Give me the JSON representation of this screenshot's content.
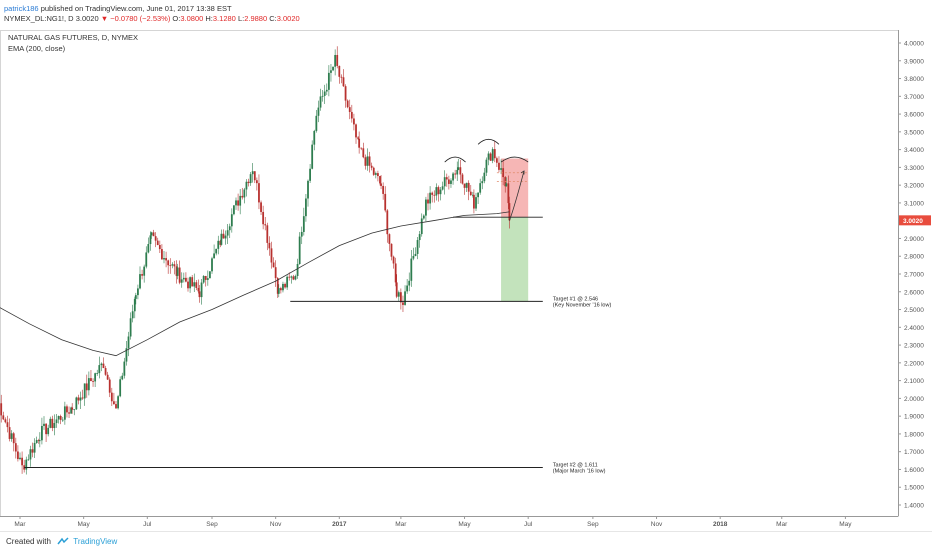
{
  "header": {
    "author": "patrick186",
    "published_text": "published on TradingView.com, June 01, 2017 13:38 EST",
    "symbol_line": "NYMEX_DL:NG1!, D",
    "last_price": "3.0020",
    "change_arrow": "▼",
    "change": "−0.0780 (−2.53%)",
    "open_label": "O:",
    "open": "3.0800",
    "high_label": "H:",
    "high": "3.1280",
    "low_label": "L:",
    "low": "2.9880",
    "close_label": "C:",
    "close": "3.0020"
  },
  "footer": {
    "created_with": "Created with",
    "brand": "TradingView"
  },
  "colors": {
    "up": "#2e7d4f",
    "down": "#b8312f",
    "ema": "#333333",
    "loss_zone": "#f4a9a8",
    "profit_zone": "#b9deb0",
    "price_tag": "#e84c3d"
  },
  "chart_data": {
    "type": "candlestick",
    "title": "NATURAL GAS FUTURES, D, NYMEX",
    "indicator_label": "EMA (200, close)",
    "ylim": [
      1.35,
      4.07
    ],
    "y_ticks": [
      "4.0000",
      "3.9000",
      "3.8000",
      "3.7000",
      "3.6000",
      "3.5000",
      "3.4000",
      "3.3000",
      "3.2000",
      "3.1000",
      "3.0000",
      "2.9000",
      "2.8000",
      "2.7000",
      "2.6000",
      "2.5000",
      "2.4000",
      "2.3000",
      "2.2000",
      "2.1000",
      "2.0000",
      "1.9000",
      "1.8000",
      "1.7000",
      "1.6000",
      "1.5000",
      "1.4000"
    ],
    "x_ticks": [
      "Mar",
      "May",
      "Jul",
      "Sep",
      "Nov",
      "2017",
      "Mar",
      "May",
      "Jul",
      "Sep",
      "Nov",
      "2018",
      "Mar",
      "May"
    ],
    "last_price_label": "3.0020",
    "last_price": 3.002,
    "keypoints": [
      {
        "date": "2016-02-08",
        "price": 2.0
      },
      {
        "date": "2016-03-03",
        "price": 1.611
      },
      {
        "date": "2016-03-20",
        "price": 1.8
      },
      {
        "date": "2016-04-20",
        "price": 1.95
      },
      {
        "date": "2016-05-20",
        "price": 2.2
      },
      {
        "date": "2016-06-01",
        "price": 1.93
      },
      {
        "date": "2016-06-20",
        "price": 2.6
      },
      {
        "date": "2016-07-05",
        "price": 2.9
      },
      {
        "date": "2016-07-30",
        "price": 2.7
      },
      {
        "date": "2016-08-20",
        "price": 2.6
      },
      {
        "date": "2016-09-10",
        "price": 2.9
      },
      {
        "date": "2016-10-10",
        "price": 3.3
      },
      {
        "date": "2016-11-04",
        "price": 2.6
      },
      {
        "date": "2016-11-20",
        "price": 2.7
      },
      {
        "date": "2016-12-10",
        "price": 3.6
      },
      {
        "date": "2016-12-28",
        "price": 3.9
      },
      {
        "date": "2017-01-20",
        "price": 3.4
      },
      {
        "date": "2017-02-10",
        "price": 3.2
      },
      {
        "date": "2017-02-25",
        "price": 2.6
      },
      {
        "date": "2017-03-03",
        "price": 2.55
      },
      {
        "date": "2017-03-25",
        "price": 3.1
      },
      {
        "date": "2017-04-10",
        "price": 3.2
      },
      {
        "date": "2017-04-25",
        "price": 3.3
      },
      {
        "date": "2017-05-10",
        "price": 3.1
      },
      {
        "date": "2017-05-20",
        "price": 3.3
      },
      {
        "date": "2017-05-28",
        "price": 3.4
      },
      {
        "date": "2017-06-10",
        "price": 3.2
      },
      {
        "date": "2017-06-13",
        "price": 3.002
      }
    ],
    "ema_200": [
      {
        "date": "2016-02-08",
        "value": 2.52
      },
      {
        "date": "2016-03-10",
        "value": 2.42
      },
      {
        "date": "2016-04-10",
        "value": 2.33
      },
      {
        "date": "2016-05-10",
        "value": 2.27
      },
      {
        "date": "2016-06-01",
        "value": 2.24
      },
      {
        "date": "2016-07-01",
        "value": 2.33
      },
      {
        "date": "2016-08-01",
        "value": 2.43
      },
      {
        "date": "2016-09-01",
        "value": 2.5
      },
      {
        "date": "2016-10-01",
        "value": 2.58
      },
      {
        "date": "2016-11-01",
        "value": 2.66
      },
      {
        "date": "2016-12-01",
        "value": 2.76
      },
      {
        "date": "2017-01-01",
        "value": 2.86
      },
      {
        "date": "2017-02-01",
        "value": 2.93
      },
      {
        "date": "2017-03-01",
        "value": 2.97
      },
      {
        "date": "2017-04-01",
        "value": 3.0
      },
      {
        "date": "2017-05-01",
        "value": 3.03
      },
      {
        "date": "2017-06-01",
        "value": 3.04
      },
      {
        "date": "2017-06-13",
        "value": 3.05
      }
    ],
    "annotations": [
      {
        "type": "support_line",
        "price": 2.546,
        "from": "2016-11-15",
        "to": "2017-07-15",
        "label": "Target #1 @ 2.546",
        "sublabel": "(Key November '16 low)"
      },
      {
        "type": "support_line",
        "price": 1.611,
        "from": "2016-03-05",
        "to": "2017-07-15",
        "label": "Target #2 @ 1.611",
        "sublabel": "(Major March '16 low)"
      },
      {
        "type": "neckline",
        "price": 3.02,
        "from": "2017-04-20",
        "to": "2017-07-15"
      },
      {
        "type": "stop_zone",
        "from": "2017-06-05",
        "to": "2017-07-01",
        "top": 3.35,
        "bottom": 3.02
      },
      {
        "type": "profit_zone",
        "from": "2017-06-05",
        "to": "2017-07-01",
        "top": 3.02,
        "bottom": 2.546
      },
      {
        "type": "dashed_level",
        "price": 3.27,
        "from": "2017-06-01",
        "to": "2017-07-01"
      },
      {
        "type": "dashed_level",
        "price": 3.22,
        "from": "2017-06-01",
        "to": "2017-07-01"
      }
    ]
  }
}
